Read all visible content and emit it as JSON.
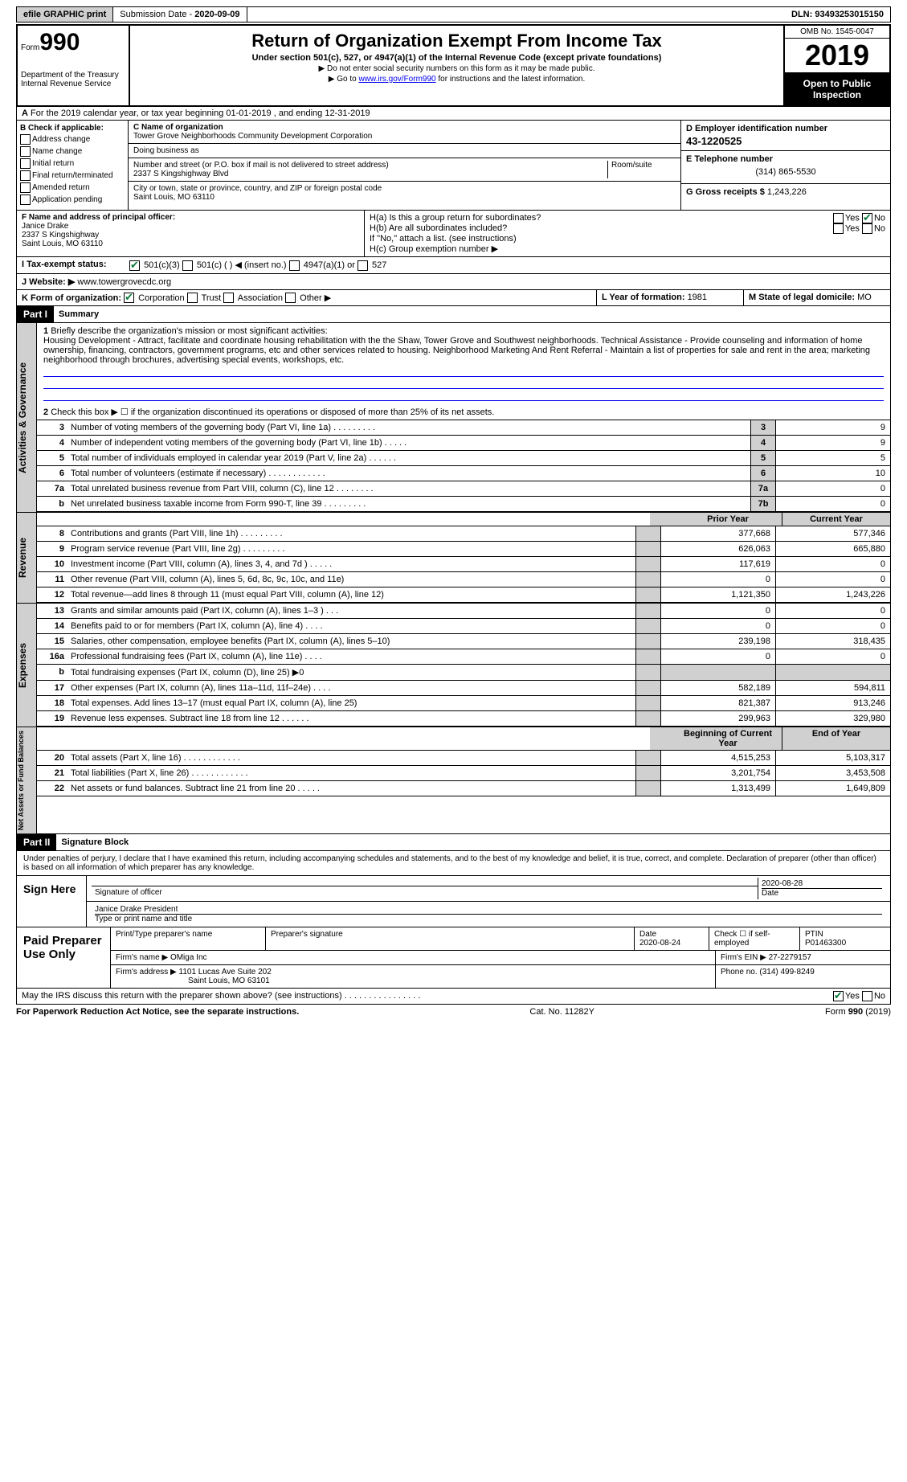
{
  "top": {
    "efile": "efile GRAPHIC print",
    "subdate_lbl": "Submission Date - ",
    "subdate": "2020-09-09",
    "dln_lbl": "DLN: ",
    "dln": "93493253015150"
  },
  "hdr": {
    "form": "Form",
    "num": "990",
    "dept": "Department of the Treasury\nInternal Revenue Service",
    "title": "Return of Organization Exempt From Income Tax",
    "sub": "Under section 501(c), 527, or 4947(a)(1) of the Internal Revenue Code (except private foundations)",
    "note1": "▶ Do not enter social security numbers on this form as it may be made public.",
    "note2_pre": "▶ Go to ",
    "note2_link": "www.irs.gov/Form990",
    "note2_post": " for instructions and the latest information.",
    "omb": "OMB No. 1545-0047",
    "year": "2019",
    "otp": "Open to Public Inspection"
  },
  "A": {
    "text": "For the 2019 calendar year, or tax year beginning 01-01-2019     , and ending 12-31-2019"
  },
  "B": {
    "lbl": "B Check if applicable:",
    "opts": [
      "Address change",
      "Name change",
      "Initial return",
      "Final return/terminated",
      "Amended return",
      "Application pending"
    ]
  },
  "C": {
    "name_lbl": "C Name of organization",
    "name": "Tower Grove Neighborhoods Community Development Corporation",
    "dba_lbl": "Doing business as",
    "addr_lbl": "Number and street (or P.O. box if mail is not delivered to street address)",
    "room_lbl": "Room/suite",
    "addr": "2337 S Kingshighway Blvd",
    "city_lbl": "City or town, state or province, country, and ZIP or foreign postal code",
    "city": "Saint Louis, MO   63110"
  },
  "D": {
    "lbl": "D Employer identification number",
    "ein": "43-1220525"
  },
  "E": {
    "lbl": "E Telephone number",
    "tel": "(314) 865-5530"
  },
  "G": {
    "lbl": "G Gross receipts $ ",
    "val": "1,243,226"
  },
  "F": {
    "lbl": "F  Name and address of principal officer:",
    "name": "Janice Drake",
    "addr1": "2337 S Kingshighway",
    "addr2": "Saint Louis, MO  63110"
  },
  "H": {
    "a": "H(a)  Is this a group return for subordinates?",
    "b": "H(b)  Are all subordinates included?",
    "note": "If \"No,\" attach a list. (see instructions)",
    "c": "H(c)  Group exemption number ▶",
    "yes": "Yes",
    "no": "No"
  },
  "I": {
    "lbl": "I   Tax-exempt status:",
    "o1": "501(c)(3)",
    "o2": "501(c) (   ) ◀ (insert no.)",
    "o3": "4947(a)(1) or",
    "o4": "527"
  },
  "J": {
    "lbl": "J   Website: ▶",
    "val": "   www.towergrovecdc.org"
  },
  "K": {
    "lbl": "K Form of organization:",
    "o1": "Corporation",
    "o2": "Trust",
    "o3": "Association",
    "o4": "Other ▶"
  },
  "L": {
    "lbl": "L Year of formation: ",
    "val": "1981"
  },
  "M": {
    "lbl": "M State of legal domicile: ",
    "val": "MO"
  },
  "p1": {
    "hdr": "Part I",
    "title": "Summary",
    "vtab": "Activities & Governance",
    "q1": "Briefly describe the organization's mission or most significant activities:",
    "mission": "Housing Development - Attract, facilitate and coordinate housing rehabilitation with the the Shaw, Tower Grove and Southwest neighborhoods. Technical Assistance - Provide counseling and information of home ownership, financing, contractors, government programs, etc and other services related to housing. Neighborhood Marketing And Rent Referral - Maintain a list of properties for sale and rent in the area; marketing neighborhood through brochures, advertising special events, workshops, etc.",
    "q2": "Check this box ▶ ☐  if the organization discontinued its operations or disposed of more than 25% of its net assets.",
    "rows": [
      {
        "n": "3",
        "t": "Number of voting members of the governing body (Part VI, line 1a)   .    .    .    .    .    .    .    .    .",
        "bn": "3",
        "v": "9"
      },
      {
        "n": "4",
        "t": "Number of independent voting members of the governing body (Part VI, line 1b)    .    .    .    .    .",
        "bn": "4",
        "v": "9"
      },
      {
        "n": "5",
        "t": "Total number of individuals employed in calendar year 2019 (Part V, line 2a)   .    .    .    .    .    .",
        "bn": "5",
        "v": "5"
      },
      {
        "n": "6",
        "t": "Total number of volunteers (estimate if necessary)   .    .    .    .    .    .    .    .    .    .    .    .",
        "bn": "6",
        "v": "10"
      },
      {
        "n": "7a",
        "t": "Total unrelated business revenue from Part VIII, column (C), line 12   .    .    .    .    .    .    .    .",
        "bn": "7a",
        "v": "0"
      },
      {
        "n": "b",
        "t": "Net unrelated business taxable income from Form 990-T, line 39   .    .    .    .    .    .    .    .    .",
        "bn": "7b",
        "v": "0"
      }
    ]
  },
  "rev": {
    "vtab": "Revenue",
    "hdr_p": "Prior Year",
    "hdr_c": "Current Year",
    "rows": [
      {
        "n": "8",
        "t": "Contributions and grants (Part VIII, line 1h)   .    .    .    .    .    .    .    .    .",
        "p": "377,668",
        "c": "577,346"
      },
      {
        "n": "9",
        "t": "Program service revenue (Part VIII, line 2g)   .    .    .    .    .    .    .    .    .",
        "p": "626,063",
        "c": "665,880"
      },
      {
        "n": "10",
        "t": "Investment income (Part VIII, column (A), lines 3, 4, and 7d )   .    .    .    .    .",
        "p": "117,619",
        "c": "0"
      },
      {
        "n": "11",
        "t": "Other revenue (Part VIII, column (A), lines 5, 6d, 8c, 9c, 10c, and 11e)",
        "p": "0",
        "c": "0"
      },
      {
        "n": "12",
        "t": "Total revenue—add lines 8 through 11 (must equal Part VIII, column (A), line 12)",
        "p": "1,121,350",
        "c": "1,243,226"
      }
    ]
  },
  "exp": {
    "vtab": "Expenses",
    "rows": [
      {
        "n": "13",
        "t": "Grants and similar amounts paid (Part IX, column (A), lines 1–3 )   .    .    .",
        "p": "0",
        "c": "0"
      },
      {
        "n": "14",
        "t": "Benefits paid to or for members (Part IX, column (A), line 4)   .    .    .    .",
        "p": "0",
        "c": "0"
      },
      {
        "n": "15",
        "t": "Salaries, other compensation, employee benefits (Part IX, column (A), lines 5–10)",
        "p": "239,198",
        "c": "318,435"
      },
      {
        "n": "16a",
        "t": "Professional fundraising fees (Part IX, column (A), line 11e)   .    .    .    .",
        "p": "0",
        "c": "0"
      },
      {
        "n": "b",
        "t": "Total fundraising expenses (Part IX, column (D), line 25) ▶0",
        "p": "",
        "c": "",
        "gray": true
      },
      {
        "n": "17",
        "t": "Other expenses (Part IX, column (A), lines 11a–11d, 11f–24e)   .    .    .    .",
        "p": "582,189",
        "c": "594,811"
      },
      {
        "n": "18",
        "t": "Total expenses. Add lines 13–17 (must equal Part IX, column (A), line 25)",
        "p": "821,387",
        "c": "913,246"
      },
      {
        "n": "19",
        "t": "Revenue less expenses. Subtract line 18 from line 12   .    .    .    .    .    .",
        "p": "299,963",
        "c": "329,980"
      }
    ]
  },
  "na": {
    "vtab": "Net Assets or Fund Balances",
    "hdr_p": "Beginning of Current Year",
    "hdr_c": "End of Year",
    "rows": [
      {
        "n": "20",
        "t": "Total assets (Part X, line 16)   .    .    .    .    .    .    .    .    .    .    .    .",
        "p": "4,515,253",
        "c": "5,103,317"
      },
      {
        "n": "21",
        "t": "Total liabilities (Part X, line 26)   .    .    .    .    .    .    .    .    .    .    .    .",
        "p": "3,201,754",
        "c": "3,453,508"
      },
      {
        "n": "22",
        "t": "Net assets or fund balances. Subtract line 21 from line 20   .    .    .    .    .",
        "p": "1,313,499",
        "c": "1,649,809"
      }
    ]
  },
  "p2": {
    "hdr": "Part II",
    "title": "Signature Block",
    "intro": "Under penalties of perjury, I declare that I have examined this return, including accompanying schedules and statements, and to the best of my knowledge and belief, it is true, correct, and complete. Declaration of preparer (other than officer) is based on all information of which preparer has any knowledge.",
    "sign": "Sign Here",
    "sig_lbl": "Signature of officer",
    "date": "2020-08-28",
    "date_lbl": "Date",
    "name": "Janice Drake President",
    "name_lbl": "Type or print name and title",
    "paid": "Paid Preparer Use Only",
    "pt_lbl": "Print/Type preparer's name",
    "ps_lbl": "Preparer's signature",
    "pdate_lbl": "Date",
    "pdate": "2020-08-24",
    "chk_lbl": "Check ☐ if self-employed",
    "ptin_lbl": "PTIN",
    "ptin": "P01463300",
    "firm_lbl": "Firm's name    ▶ ",
    "firm": "OMiga Inc",
    "fein_lbl": "Firm's EIN ▶ ",
    "fein": "27-2279157",
    "faddr_lbl": "Firm's address ▶ ",
    "faddr1": "1101 Lucas Ave Suite 202",
    "faddr2": "Saint Louis, MO  63101",
    "fphone_lbl": "Phone no. ",
    "fphone": "(314) 499-8249",
    "may": "May the IRS discuss this return with the preparer shown above? (see instructions)   .    .    .    .    .    .    .    .    .    .    .    .    .    .    .    .",
    "yes": "Yes",
    "no": "No"
  },
  "foot": {
    "l": "For Paperwork Reduction Act Notice, see the separate instructions.",
    "m": "Cat. No. 11282Y",
    "r": "Form 990 (2019)"
  }
}
